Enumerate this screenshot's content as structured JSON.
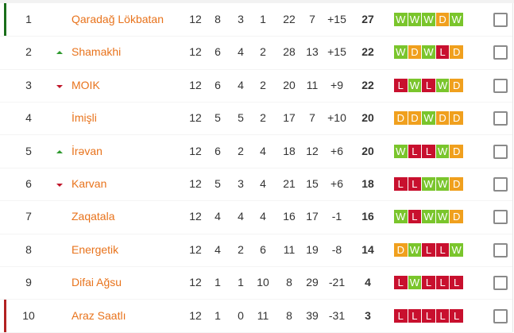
{
  "colors": {
    "W": "#7ac52c",
    "D": "#f0a01e",
    "L": "#c8102e",
    "team_link": "#e8731c",
    "promotion_bar": "#1a6e1a",
    "relegation_bar": "#b22222"
  },
  "rows": [
    {
      "pos": "1",
      "trend": "",
      "team": "Qaradağ Lökbatan",
      "p": "12",
      "w": "8",
      "d": "3",
      "l": "1",
      "gf": "22",
      "ga": "7",
      "gd": "+15",
      "pts": "27",
      "form": [
        "W",
        "W",
        "W",
        "D",
        "W"
      ],
      "zone": "promotion"
    },
    {
      "pos": "2",
      "trend": "up",
      "team": "Shamakhi",
      "p": "12",
      "w": "6",
      "d": "4",
      "l": "2",
      "gf": "28",
      "ga": "13",
      "gd": "+15",
      "pts": "22",
      "form": [
        "W",
        "D",
        "W",
        "L",
        "D"
      ],
      "zone": ""
    },
    {
      "pos": "3",
      "trend": "down",
      "team": "MOIK",
      "p": "12",
      "w": "6",
      "d": "4",
      "l": "2",
      "gf": "20",
      "ga": "11",
      "gd": "+9",
      "pts": "22",
      "form": [
        "L",
        "W",
        "L",
        "W",
        "D"
      ],
      "zone": ""
    },
    {
      "pos": "4",
      "trend": "",
      "team": "İmişli",
      "p": "12",
      "w": "5",
      "d": "5",
      "l": "2",
      "gf": "17",
      "ga": "7",
      "gd": "+10",
      "pts": "20",
      "form": [
        "D",
        "D",
        "W",
        "D",
        "D"
      ],
      "zone": ""
    },
    {
      "pos": "5",
      "trend": "up",
      "team": "İrəvan",
      "p": "12",
      "w": "6",
      "d": "2",
      "l": "4",
      "gf": "18",
      "ga": "12",
      "gd": "+6",
      "pts": "20",
      "form": [
        "W",
        "L",
        "L",
        "W",
        "D"
      ],
      "zone": ""
    },
    {
      "pos": "6",
      "trend": "down",
      "team": "Karvan",
      "p": "12",
      "w": "5",
      "d": "3",
      "l": "4",
      "gf": "21",
      "ga": "15",
      "gd": "+6",
      "pts": "18",
      "form": [
        "L",
        "L",
        "W",
        "W",
        "D"
      ],
      "zone": ""
    },
    {
      "pos": "7",
      "trend": "",
      "team": "Zaqatala",
      "p": "12",
      "w": "4",
      "d": "4",
      "l": "4",
      "gf": "16",
      "ga": "17",
      "gd": "-1",
      "pts": "16",
      "form": [
        "W",
        "L",
        "W",
        "W",
        "D"
      ],
      "zone": ""
    },
    {
      "pos": "8",
      "trend": "",
      "team": "Energetik",
      "p": "12",
      "w": "4",
      "d": "2",
      "l": "6",
      "gf": "11",
      "ga": "19",
      "gd": "-8",
      "pts": "14",
      "form": [
        "D",
        "W",
        "L",
        "L",
        "W"
      ],
      "zone": ""
    },
    {
      "pos": "9",
      "trend": "",
      "team": "Difai Ağsu",
      "p": "12",
      "w": "1",
      "d": "1",
      "l": "10",
      "gf": "8",
      "ga": "29",
      "gd": "-21",
      "pts": "4",
      "form": [
        "L",
        "W",
        "L",
        "L",
        "L"
      ],
      "zone": ""
    },
    {
      "pos": "10",
      "trend": "",
      "team": "Araz Saatlı",
      "p": "12",
      "w": "1",
      "d": "0",
      "l": "11",
      "gf": "8",
      "ga": "39",
      "gd": "-31",
      "pts": "3",
      "form": [
        "L",
        "L",
        "L",
        "L",
        "L"
      ],
      "zone": "relegation"
    }
  ]
}
